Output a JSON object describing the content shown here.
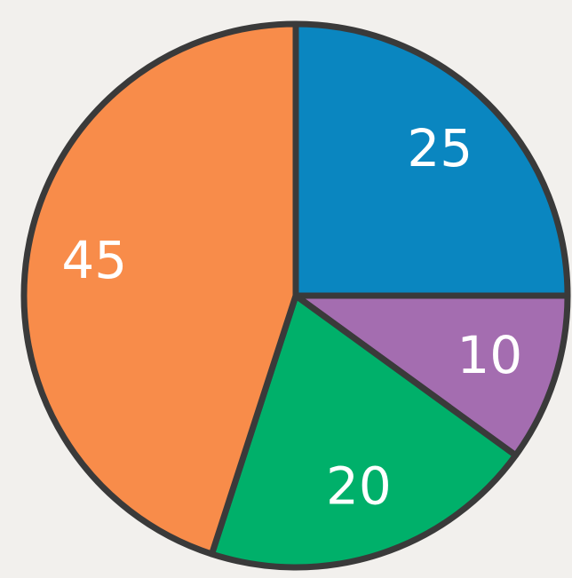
{
  "chart_data": {
    "type": "pie",
    "categories": [
      null,
      null,
      null,
      null
    ],
    "values": [
      25,
      10,
      20,
      45
    ],
    "colors": [
      "#0a86c0",
      "#a46db0",
      "#00b06a",
      "#f88c4a"
    ]
  }
}
